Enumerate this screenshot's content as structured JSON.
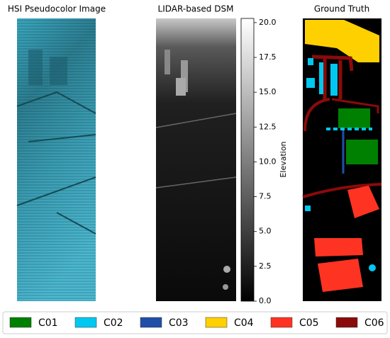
{
  "panels": [
    {
      "title": "HSI Pseudocolor Image"
    },
    {
      "title": "LIDAR-based DSM"
    },
    {
      "title": "Ground Truth"
    }
  ],
  "colorbar": {
    "label": "Elevation",
    "lim": [
      0,
      20.3
    ],
    "ticks": [
      {
        "value": 0,
        "label": "0.0"
      },
      2.5,
      {
        "value": 5,
        "label": "5.0"
      },
      7.5,
      {
        "value": 10,
        "label": "10.0"
      },
      12.5,
      {
        "value": 15,
        "label": "15.0"
      },
      17.5,
      {
        "value": 20,
        "label": "20.0"
      }
    ]
  },
  "legend": {
    "items": [
      {
        "name": "C01",
        "color": "#008000"
      },
      {
        "name": "C02",
        "color": "#00c8f0"
      },
      {
        "name": "C03",
        "color": "#1f4fa8"
      },
      {
        "name": "C04",
        "color": "#ffd000"
      },
      {
        "name": "C05",
        "color": "#ff3322"
      },
      {
        "name": "C06",
        "color": "#8b0a0a"
      }
    ]
  }
}
